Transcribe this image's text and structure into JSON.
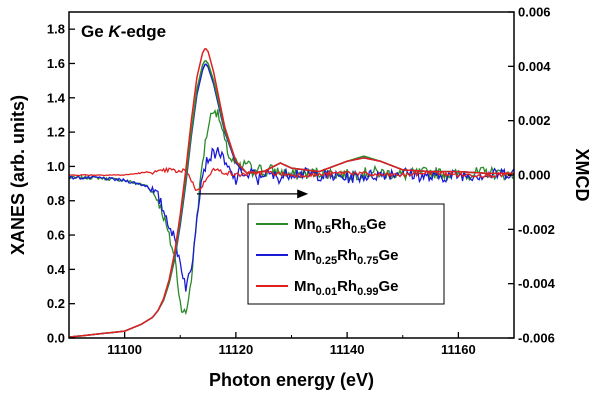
{
  "chart_data": {
    "type": "line",
    "title": "",
    "xlabel": "Photon energy (eV)",
    "ylabel_left": "XANES (arb. units)",
    "ylabel_right": "XMCD",
    "xlim": [
      11090,
      11170
    ],
    "ylim_left": [
      0,
      1.9
    ],
    "ylim_right": [
      -0.006,
      0.006
    ],
    "x_ticks": [
      11100,
      11120,
      11140,
      11160
    ],
    "x_tick_labels": [
      "11100",
      "11120",
      "11140",
      "11160"
    ],
    "y_left_ticks": [
      0.0,
      0.2,
      0.4,
      0.6,
      0.8,
      1.0,
      1.2,
      1.4,
      1.6,
      1.8
    ],
    "y_left_tick_labels": [
      "0.0",
      "0.2",
      "0.4",
      "0.6",
      "0.8",
      "1.0",
      "1.2",
      "1.4",
      "1.6",
      "1.8"
    ],
    "y_right_ticks": [
      -0.006,
      -0.004,
      -0.002,
      0.0,
      0.002,
      0.004,
      0.006
    ],
    "y_right_tick_labels": [
      "-0.006",
      "-0.004",
      "-0.002",
      "0.000",
      "0.002",
      "0.004",
      "0.006"
    ],
    "annotation": {
      "prefix": "Ge ",
      "italic": "K",
      "suffix": "-edge"
    },
    "arrow": {
      "x_from": 11113,
      "x_to": 11133,
      "y_left": 0.84,
      "direction": "right"
    },
    "legend": {
      "placement": "center-right",
      "entries": [
        {
          "parts": [
            [
              "Mn",
              ""
            ],
            [
              "0.5",
              "sub"
            ],
            [
              "Rh",
              ""
            ],
            [
              "0.5",
              "sub"
            ],
            [
              "Ge",
              ""
            ]
          ],
          "color": "#2a8a2a"
        },
        {
          "parts": [
            [
              "Mn",
              ""
            ],
            [
              "0.25",
              "sub"
            ],
            [
              "Rh",
              ""
            ],
            [
              "0.75",
              "sub"
            ],
            [
              "Ge",
              ""
            ]
          ],
          "color": "#1a1ad6"
        },
        {
          "parts": [
            [
              "Mn",
              ""
            ],
            [
              "0.01",
              "sub"
            ],
            [
              "Rh",
              ""
            ],
            [
              "0.99",
              "sub"
            ],
            [
              "Ge",
              ""
            ]
          ],
          "color": "#e02020"
        }
      ]
    },
    "series": [
      {
        "role": "xanes",
        "axis": "left",
        "color": "#1a1ad6",
        "x": [
          11090,
          11100,
          11103,
          11105,
          11106,
          11107,
          11108,
          11109,
          11110,
          11111,
          11112,
          11113,
          11114,
          11114.5,
          11115,
          11116,
          11117,
          11118,
          11120,
          11122,
          11125,
          11128,
          11130,
          11135,
          11140,
          11143,
          11146,
          11150,
          11155,
          11160,
          11165,
          11170
        ],
        "y": [
          0.005,
          0.04,
          0.08,
          0.12,
          0.16,
          0.22,
          0.32,
          0.46,
          0.66,
          0.9,
          1.18,
          1.42,
          1.56,
          1.6,
          1.58,
          1.48,
          1.34,
          1.2,
          1.02,
          0.96,
          0.97,
          1.02,
          0.99,
          0.97,
          1.03,
          1.05,
          1.03,
          0.98,
          0.97,
          0.97,
          0.96,
          0.96
        ]
      },
      {
        "role": "xanes",
        "axis": "left",
        "color": "#2a8a2a",
        "x": [
          11090,
          11100,
          11103,
          11105,
          11106,
          11107,
          11108,
          11109,
          11110,
          11111,
          11112,
          11113,
          11114,
          11114.5,
          11115,
          11116,
          11117,
          11118,
          11120,
          11122,
          11125,
          11128,
          11130,
          11135,
          11140,
          11143,
          11146,
          11150,
          11155,
          11160,
          11165,
          11170
        ],
        "y": [
          0.005,
          0.04,
          0.08,
          0.12,
          0.16,
          0.22,
          0.32,
          0.47,
          0.68,
          0.92,
          1.2,
          1.45,
          1.59,
          1.62,
          1.6,
          1.5,
          1.36,
          1.21,
          1.03,
          0.96,
          0.97,
          1.02,
          0.99,
          0.97,
          1.03,
          1.06,
          1.03,
          0.98,
          0.97,
          0.97,
          0.96,
          0.96
        ]
      },
      {
        "role": "xanes",
        "axis": "left",
        "color": "#e02020",
        "x": [
          11090,
          11100,
          11103,
          11105,
          11106,
          11107,
          11108,
          11109,
          11110,
          11111,
          11112,
          11113,
          11114,
          11114.5,
          11115,
          11116,
          11117,
          11118,
          11120,
          11122,
          11125,
          11128,
          11130,
          11135,
          11140,
          11143,
          11146,
          11150,
          11155,
          11160,
          11165,
          11170
        ],
        "y": [
          0.005,
          0.04,
          0.08,
          0.12,
          0.16,
          0.23,
          0.34,
          0.5,
          0.72,
          0.98,
          1.27,
          1.52,
          1.66,
          1.69,
          1.67,
          1.55,
          1.39,
          1.23,
          1.03,
          0.96,
          0.97,
          1.02,
          0.99,
          0.97,
          1.03,
          1.05,
          1.03,
          0.98,
          0.97,
          0.97,
          0.96,
          0.96
        ]
      },
      {
        "role": "xmcd",
        "axis": "right",
        "color": "#2a8a2a",
        "x": [
          11090,
          11095,
          11100,
          11104,
          11106,
          11107,
          11108,
          11109,
          11110,
          11111,
          11112,
          11113,
          11114,
          11115,
          11116,
          11117,
          11118,
          11119,
          11120,
          11121,
          11122,
          11123,
          11124,
          11125,
          11126,
          11128,
          11130,
          11135,
          11140,
          11145,
          11150,
          11155,
          11160,
          11165,
          11170
        ],
        "y": [
          -0.0001,
          -0.0001,
          -0.0002,
          -0.0004,
          -0.0009,
          -0.0015,
          -0.0023,
          -0.003,
          -0.0047,
          -0.0052,
          -0.0038,
          -0.0015,
          0.0005,
          0.0018,
          0.0025,
          0.0021,
          0.0012,
          0.0006,
          0.0004,
          0.0002,
          0.0005,
          0.0001,
          0.0004,
          0.0,
          0.0002,
          0.0001,
          0.0,
          0.0001,
          0.0,
          0.0001,
          0.0,
          0.0001,
          0.0,
          0.0001,
          0.0
        ]
      },
      {
        "role": "xmcd",
        "axis": "right",
        "color": "#1a1ad6",
        "x": [
          11090,
          11095,
          11100,
          11104,
          11106,
          11107,
          11108,
          11109,
          11110,
          11111,
          11112,
          11113,
          11114,
          11115,
          11116,
          11117,
          11118,
          11119,
          11120,
          11121,
          11122,
          11123,
          11124,
          11125,
          11126,
          11128,
          11130,
          11135,
          11140,
          11145,
          11150,
          11155,
          11160,
          11165,
          11170
        ],
        "y": [
          -0.0001,
          -0.0001,
          -0.0002,
          -0.0004,
          -0.0008,
          -0.0013,
          -0.0018,
          -0.0024,
          -0.0032,
          -0.0041,
          -0.0035,
          -0.0014,
          0.0001,
          0.0006,
          0.0008,
          0.0009,
          0.0004,
          0.0001,
          -0.0002,
          0.0002,
          -0.0001,
          0.0001,
          -0.0002,
          0.0001,
          0.0,
          -0.0001,
          0.0001,
          0.0,
          -0.0001,
          0.0,
          0.0001,
          -0.0001,
          0.0,
          0.0,
          0.0001
        ]
      },
      {
        "role": "xmcd",
        "axis": "right",
        "color": "#e02020",
        "x": [
          11090,
          11095,
          11100,
          11104,
          11106,
          11108,
          11110,
          11111,
          11112,
          11113,
          11114,
          11115,
          11116,
          11118,
          11120,
          11125,
          11130,
          11135,
          11140,
          11145,
          11150,
          11155,
          11160,
          11165,
          11170
        ],
        "y": [
          0.0,
          0.0,
          0.0,
          0.0001,
          0.0001,
          0.0002,
          0.0001,
          0.0002,
          -0.0002,
          -0.0006,
          -0.0004,
          0.0,
          0.0002,
          0.0001,
          0.0,
          0.0001,
          0.0,
          0.0,
          0.0001,
          0.0,
          0.0,
          0.0001,
          0.0,
          0.0,
          0.0
        ]
      }
    ]
  }
}
